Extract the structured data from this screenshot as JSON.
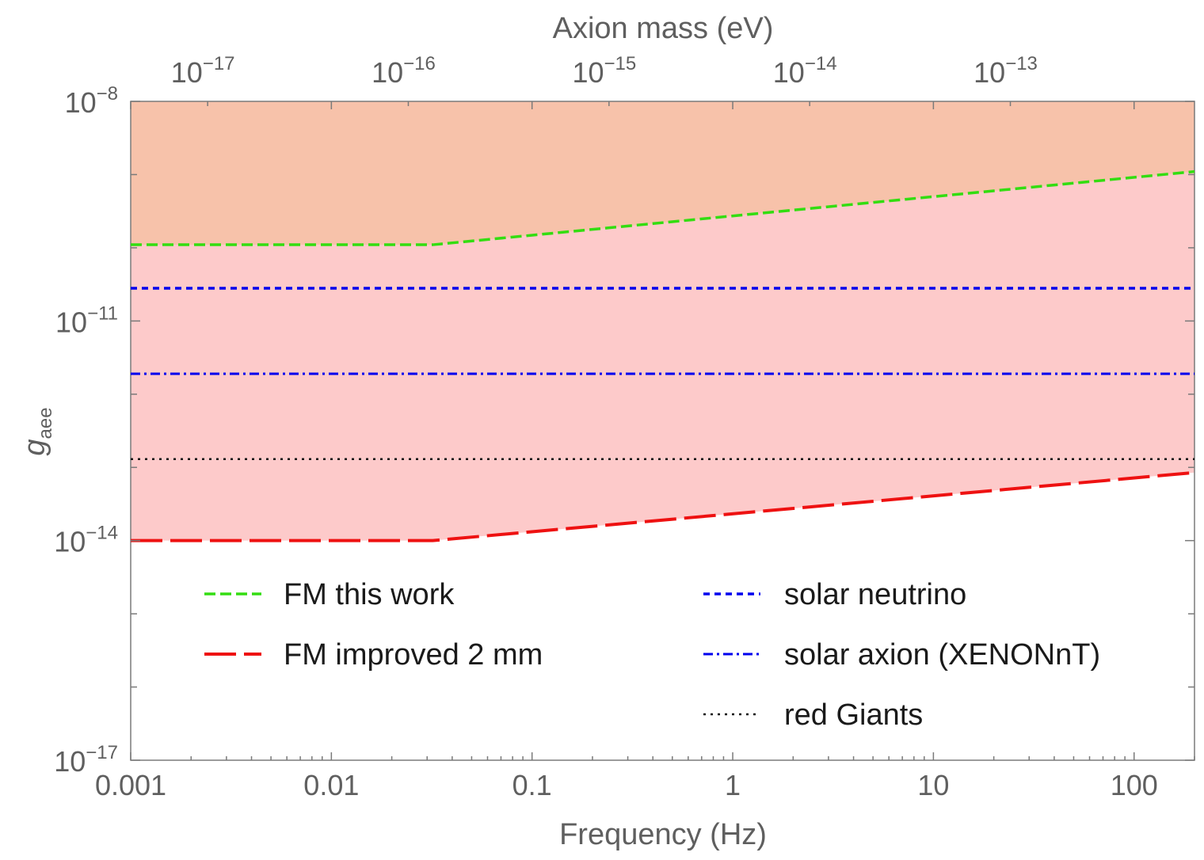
{
  "chart_data": {
    "type": "line",
    "title": "",
    "xlabel": "Frequency (Hz)",
    "ylabel_main": "g",
    "ylabel_sub": "aee",
    "top_xlabel": "Axion mass (eV)",
    "xscale": "log",
    "yscale": "log",
    "xlim": [
      0.001,
      200
    ],
    "ylim": [
      1e-17,
      1e-08
    ],
    "x_ticks": [
      {
        "value": 0.001,
        "label": "0.001"
      },
      {
        "value": 0.01,
        "label": "0.01"
      },
      {
        "value": 0.1,
        "label": "0.1"
      },
      {
        "value": 1,
        "label": "1"
      },
      {
        "value": 10,
        "label": "10"
      },
      {
        "value": 100,
        "label": "100"
      }
    ],
    "y_ticks": [
      {
        "value": 1e-08,
        "base": "10",
        "exp": "−8"
      },
      {
        "value": 1e-11,
        "base": "10",
        "exp": "−11"
      },
      {
        "value": 1e-14,
        "base": "10",
        "exp": "−14"
      },
      {
        "value": 1e-17,
        "base": "10",
        "exp": "−17"
      }
    ],
    "top_ticks": [
      {
        "mass_eV": 1e-17,
        "base": "10",
        "exp": "−17"
      },
      {
        "mass_eV": 1e-16,
        "base": "10",
        "exp": "−16"
      },
      {
        "mass_eV": 1e-15,
        "base": "10",
        "exp": "−15"
      },
      {
        "mass_eV": 1e-14,
        "base": "10",
        "exp": "−14"
      },
      {
        "mass_eV": 1e-13,
        "base": "10",
        "exp": "−13"
      }
    ],
    "mass_per_hz_eV": 4.136e-15,
    "series": [
      {
        "name": "FM this work",
        "style": "dashed",
        "color": "#33dd11",
        "x": [
          0.001,
          0.032,
          200
        ],
        "y": [
          1.1e-10,
          1.1e-10,
          1.1e-09
        ],
        "fill_to_top": true,
        "fill_color": "#f7c2aa"
      },
      {
        "name": "FM improved 2 mm",
        "style": "long-dashed",
        "color": "#ee1111",
        "x": [
          0.001,
          0.032,
          200
        ],
        "y": [
          1e-14,
          1e-14,
          8.5e-14
        ],
        "fill_to_top": true,
        "fill_color": "#fdcaca"
      },
      {
        "name": "solar neutrino",
        "style": "dotted-dense",
        "color": "#0000ee",
        "x": [
          0.001,
          200
        ],
        "y": [
          2.8e-11,
          2.8e-11
        ]
      },
      {
        "name": "solar axion (XENONnT)",
        "style": "dash-dot",
        "color": "#0000ee",
        "x": [
          0.001,
          200
        ],
        "y": [
          1.9e-12,
          1.9e-12
        ]
      },
      {
        "name": "red Giants",
        "style": "dotted",
        "color": "#111111",
        "x": [
          0.001,
          200
        ],
        "y": [
          1.3e-13,
          1.3e-13
        ]
      }
    ],
    "legend": [
      {
        "label": "FM this work",
        "series": 0,
        "position": "left"
      },
      {
        "label": "FM improved 2 mm",
        "series": 1,
        "position": "left"
      },
      {
        "label": "solar neutrino",
        "series": 2,
        "position": "right"
      },
      {
        "label": "solar axion (XENONnT)",
        "series": 3,
        "position": "right"
      },
      {
        "label": "red Giants",
        "series": 4,
        "position": "right"
      }
    ]
  }
}
